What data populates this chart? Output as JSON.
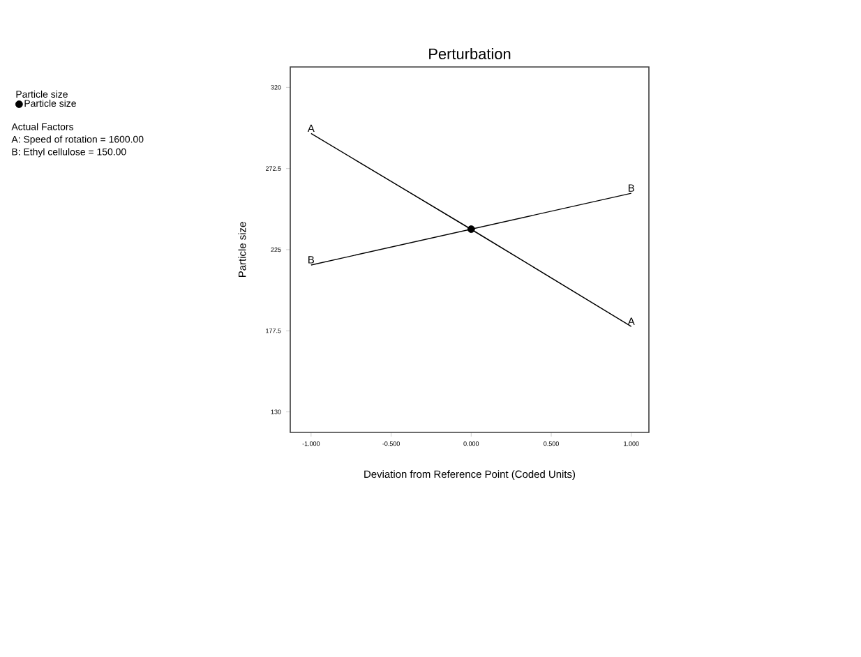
{
  "chart_data": {
    "type": "line",
    "title": "Perturbation",
    "xlabel": "Deviation from Reference Point (Coded Units)",
    "ylabel": "Particle size",
    "legend_title": "Particle size",
    "legend": "left",
    "xlim": [
      -1.13,
      1.11
    ],
    "ylim": [
      118,
      332
    ],
    "xticks": [
      {
        "value": -1,
        "label": "-1.000"
      },
      {
        "value": -0.5,
        "label": "-0.500"
      },
      {
        "value": 0,
        "label": "0.000"
      },
      {
        "value": 0.5,
        "label": "0.500"
      },
      {
        "value": 1,
        "label": "1.000"
      }
    ],
    "yticks": [
      130,
      177.5,
      225,
      272.5,
      320
    ],
    "series": [
      {
        "name": "A",
        "color": "#000000",
        "x": [
          -1,
          0,
          1
        ],
        "values": [
          293,
          237,
          180
        ]
      },
      {
        "name": "B",
        "color": "#000000",
        "x": [
          -1,
          0,
          1
        ],
        "values": [
          216,
          237,
          258
        ]
      },
      {
        "name": "Particle size",
        "type": "scatter",
        "color": "#000000",
        "x": [
          0
        ],
        "values": [
          237
        ]
      }
    ],
    "annotations": [
      "Actual Factors",
      "A: Speed of rotation = 1600.00",
      "B: Ethyl cellulose = 150.00"
    ]
  }
}
